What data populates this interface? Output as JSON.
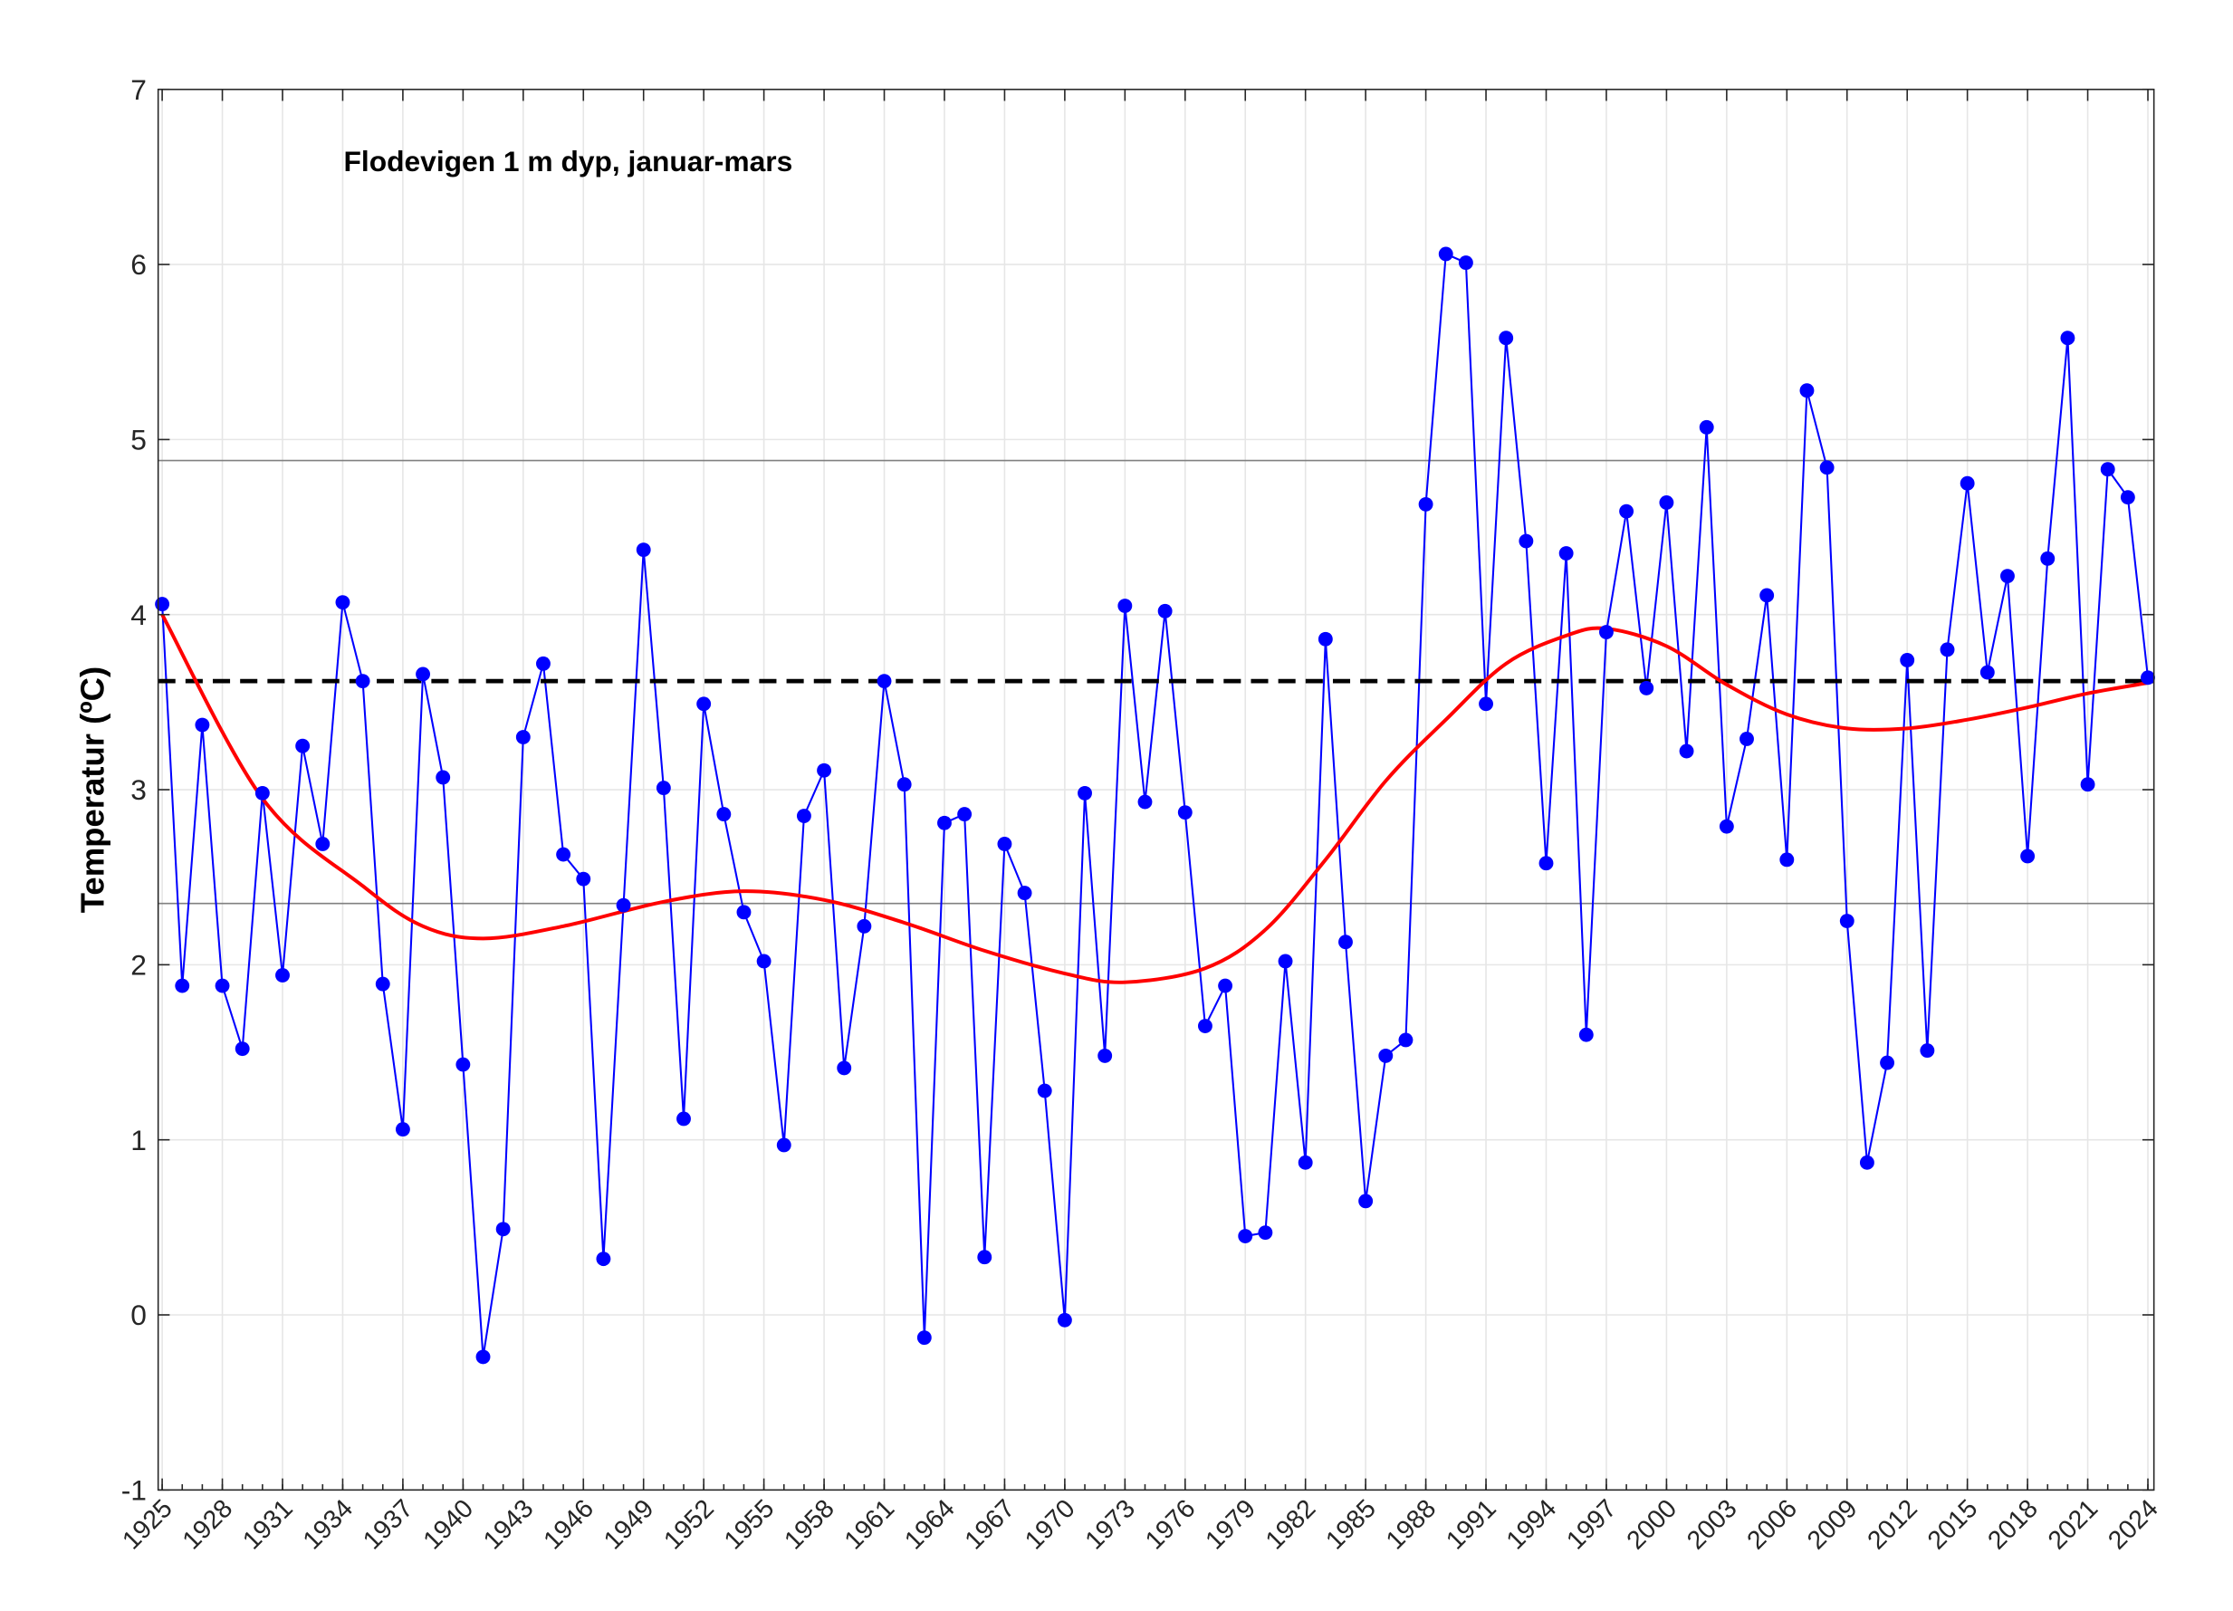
{
  "chart_data": {
    "type": "line",
    "title": "Flodevigen 1 m dyp, januar-mars",
    "xlabel": "",
    "ylabel": "Temperatur (ºC)",
    "xlim": [
      1924.8,
      2024.3
    ],
    "ylim": [
      -1,
      7
    ],
    "yticks": [
      -1,
      0,
      1,
      2,
      3,
      4,
      5,
      6,
      7
    ],
    "xticks": [
      1925,
      1928,
      1931,
      1934,
      1937,
      1940,
      1943,
      1946,
      1949,
      1952,
      1955,
      1958,
      1961,
      1964,
      1967,
      1970,
      1973,
      1976,
      1979,
      1982,
      1985,
      1988,
      1991,
      1994,
      1997,
      2000,
      2003,
      2006,
      2009,
      2012,
      2015,
      2018,
      2021,
      2024
    ],
    "grid": true,
    "colors": {
      "series": "#0000ff",
      "smooth": "#ff0000",
      "mean": "#000000",
      "reference": "#808080"
    },
    "x_start": 1925,
    "series": [
      {
        "style": "line-with-markers",
        "color": "#0000ff",
        "values": [
          4.06,
          1.88,
          3.37,
          1.88,
          1.52,
          2.98,
          1.94,
          3.25,
          2.69,
          4.07,
          3.62,
          1.89,
          1.06,
          3.66,
          3.07,
          1.43,
          -0.24,
          0.49,
          3.3,
          3.72,
          2.63,
          2.49,
          0.32,
          2.34,
          4.37,
          3.01,
          1.12,
          3.49,
          2.86,
          2.3,
          2.02,
          0.97,
          2.85,
          3.11,
          1.41,
          2.22,
          3.62,
          3.03,
          -0.13,
          2.81,
          2.86,
          0.33,
          2.69,
          2.41,
          1.28,
          -0.03,
          2.98,
          1.48,
          4.05,
          2.93,
          4.02,
          2.87,
          1.65,
          1.88,
          0.45,
          0.47,
          2.02,
          0.87,
          3.86,
          2.13,
          0.65,
          1.48,
          1.57,
          4.63,
          6.06,
          6.01,
          3.49,
          5.58,
          4.42,
          2.58,
          4.35,
          1.6,
          3.9,
          4.59,
          3.58,
          4.64,
          3.22,
          5.07,
          2.79,
          3.29,
          4.11,
          2.6,
          5.28,
          4.84,
          2.25,
          0.87,
          1.44,
          3.74,
          1.51,
          3.8,
          4.75,
          3.67,
          4.22,
          2.62,
          4.32,
          5.58,
          3.03,
          4.83,
          4.67,
          3.64
        ]
      },
      {
        "style": "smooth-curve",
        "color": "#ff0000",
        "x": [
          1925,
          1930,
          1935,
          1938,
          1941,
          1945,
          1950,
          1954,
          1958,
          1962,
          1966,
          1970,
          1973,
          1977,
          1980,
          1983,
          1986,
          1989,
          1992,
          1995,
          1997,
          2000,
          2003,
          2006,
          2009,
          2012,
          2015,
          2018,
          2021,
          2024
        ],
        "values": [
          4.0,
          2.95,
          2.45,
          2.22,
          2.15,
          2.22,
          2.36,
          2.42,
          2.37,
          2.24,
          2.08,
          1.95,
          1.9,
          1.98,
          2.2,
          2.6,
          3.05,
          3.4,
          3.72,
          3.88,
          3.92,
          3.82,
          3.6,
          3.43,
          3.35,
          3.35,
          3.4,
          3.47,
          3.55,
          3.61
        ]
      }
    ],
    "mean_line": 3.62,
    "reference_lines": [
      4.88,
      2.35
    ]
  }
}
